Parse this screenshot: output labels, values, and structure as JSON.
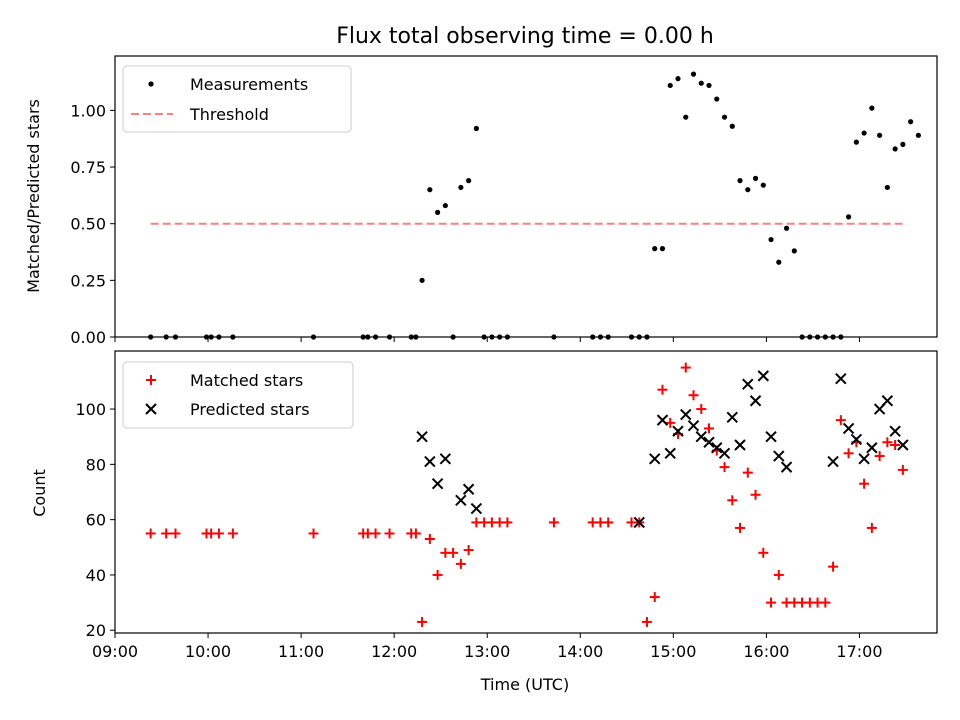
{
  "chart_data": [
    {
      "type": "scatter",
      "title": "Flux total observing time = 0.00 h",
      "xlabel": "",
      "ylabel": "Matched/Predicted stars",
      "xlim": [
        "09:00",
        "17:50"
      ],
      "ylim": [
        0,
        1.24
      ],
      "yticks": [
        "0.00",
        "0.25",
        "0.50",
        "0.75",
        "1.00"
      ],
      "legend": {
        "position": "top-left",
        "entries": [
          "Measurements",
          "Threshold"
        ]
      },
      "threshold": {
        "name": "Threshold",
        "y": 0.5,
        "x_range": [
          "09:23",
          "17:28"
        ],
        "color": "#ff7f7f",
        "style": "dashed"
      },
      "series": [
        {
          "name": "Measurements",
          "color": "#000000",
          "marker": "dot",
          "points": [
            [
              "09:23",
              0
            ],
            [
              "09:33",
              0
            ],
            [
              "09:39",
              0
            ],
            [
              "09:59",
              0
            ],
            [
              "10:02",
              0
            ],
            [
              "10:07",
              0
            ],
            [
              "10:16",
              0
            ],
            [
              "11:08",
              0
            ],
            [
              "11:40",
              0
            ],
            [
              "11:43",
              0
            ],
            [
              "11:48",
              0
            ],
            [
              "11:57",
              0
            ],
            [
              "12:11",
              0
            ],
            [
              "12:14",
              0
            ],
            [
              "12:18",
              0.25
            ],
            [
              "12:23",
              0.65
            ],
            [
              "12:28",
              0.55
            ],
            [
              "12:33",
              0.58
            ],
            [
              "12:38",
              0
            ],
            [
              "12:43",
              0.66
            ],
            [
              "12:48",
              0.69
            ],
            [
              "12:53",
              0.92
            ],
            [
              "12:58",
              0
            ],
            [
              "13:03",
              0
            ],
            [
              "13:08",
              0
            ],
            [
              "13:13",
              0
            ],
            [
              "13:43",
              0
            ],
            [
              "14:08",
              0
            ],
            [
              "14:13",
              0
            ],
            [
              "14:18",
              0
            ],
            [
              "14:33",
              0
            ],
            [
              "14:38",
              0
            ],
            [
              "14:43",
              0
            ],
            [
              "14:48",
              0.39
            ],
            [
              "14:53",
              0.39
            ],
            [
              "14:58",
              1.11
            ],
            [
              "15:03",
              1.14
            ],
            [
              "15:08",
              0.97
            ],
            [
              "15:13",
              1.16
            ],
            [
              "15:18",
              1.12
            ],
            [
              "15:23",
              1.11
            ],
            [
              "15:28",
              1.05
            ],
            [
              "15:33",
              0.97
            ],
            [
              "15:38",
              0.93
            ],
            [
              "15:43",
              0.69
            ],
            [
              "15:48",
              0.65
            ],
            [
              "15:53",
              0.7
            ],
            [
              "15:58",
              0.67
            ],
            [
              "16:03",
              0.43
            ],
            [
              "16:08",
              0.33
            ],
            [
              "16:13",
              0.48
            ],
            [
              "16:18",
              0.38
            ],
            [
              "16:23",
              0
            ],
            [
              "16:28",
              0
            ],
            [
              "16:33",
              0
            ],
            [
              "16:38",
              0
            ],
            [
              "16:43",
              0
            ],
            [
              "16:48",
              0
            ],
            [
              "16:53",
              0.53
            ],
            [
              "16:58",
              0.86
            ],
            [
              "17:03",
              0.9
            ],
            [
              "17:08",
              1.01
            ],
            [
              "17:13",
              0.89
            ],
            [
              "17:18",
              0.66
            ],
            [
              "17:23",
              0.83
            ],
            [
              "17:28",
              0.85
            ],
            [
              "17:33",
              0.95
            ],
            [
              "17:38",
              0.89
            ]
          ]
        }
      ]
    },
    {
      "type": "scatter",
      "title": "",
      "xlabel": "Time (UTC)",
      "ylabel": "Count",
      "xlim": [
        "09:00",
        "17:50"
      ],
      "ylim": [
        19,
        121
      ],
      "xticks": [
        "09:00",
        "10:00",
        "11:00",
        "12:00",
        "13:00",
        "14:00",
        "15:00",
        "16:00",
        "17:00"
      ],
      "yticks": [
        "20",
        "40",
        "60",
        "80",
        "100"
      ],
      "legend": {
        "position": "top-left",
        "entries": [
          "Matched stars",
          "Predicted stars"
        ]
      },
      "series": [
        {
          "name": "Matched stars",
          "color": "#ff0000",
          "marker": "plus",
          "points": [
            [
              "09:23",
              55
            ],
            [
              "09:33",
              55
            ],
            [
              "09:39",
              55
            ],
            [
              "09:59",
              55
            ],
            [
              "10:02",
              55
            ],
            [
              "10:07",
              55
            ],
            [
              "10:16",
              55
            ],
            [
              "11:08",
              55
            ],
            [
              "11:40",
              55
            ],
            [
              "11:43",
              55
            ],
            [
              "11:48",
              55
            ],
            [
              "11:57",
              55
            ],
            [
              "12:11",
              55
            ],
            [
              "12:14",
              55
            ],
            [
              "12:18",
              23
            ],
            [
              "12:23",
              53
            ],
            [
              "12:28",
              40
            ],
            [
              "12:33",
              48
            ],
            [
              "12:38",
              48
            ],
            [
              "12:43",
              44
            ],
            [
              "12:48",
              49
            ],
            [
              "12:53",
              59
            ],
            [
              "12:58",
              59
            ],
            [
              "13:03",
              59
            ],
            [
              "13:08",
              59
            ],
            [
              "13:13",
              59
            ],
            [
              "13:43",
              59
            ],
            [
              "14:08",
              59
            ],
            [
              "14:13",
              59
            ],
            [
              "14:18",
              59
            ],
            [
              "14:33",
              59
            ],
            [
              "14:38",
              59
            ],
            [
              "14:43",
              23
            ],
            [
              "14:48",
              32
            ],
            [
              "14:53",
              107
            ],
            [
              "14:58",
              95
            ],
            [
              "15:03",
              91
            ],
            [
              "15:08",
              115
            ],
            [
              "15:13",
              105
            ],
            [
              "15:18",
              100
            ],
            [
              "15:23",
              93
            ],
            [
              "15:28",
              85
            ],
            [
              "15:33",
              79
            ],
            [
              "15:38",
              67
            ],
            [
              "15:43",
              57
            ],
            [
              "15:48",
              77
            ],
            [
              "15:53",
              69
            ],
            [
              "15:58",
              48
            ],
            [
              "16:03",
              30
            ],
            [
              "16:08",
              40
            ],
            [
              "16:13",
              30
            ],
            [
              "16:18",
              30
            ],
            [
              "16:23",
              30
            ],
            [
              "16:28",
              30
            ],
            [
              "16:33",
              30
            ],
            [
              "16:38",
              30
            ],
            [
              "16:43",
              43
            ],
            [
              "16:48",
              96
            ],
            [
              "16:53",
              84
            ],
            [
              "16:58",
              88
            ],
            [
              "17:03",
              73
            ],
            [
              "17:08",
              57
            ],
            [
              "17:13",
              83
            ],
            [
              "17:18",
              88
            ],
            [
              "17:23",
              87
            ],
            [
              "17:28",
              78
            ]
          ]
        },
        {
          "name": "Predicted stars",
          "color": "#000000",
          "marker": "cross",
          "points": [
            [
              "12:18",
              90
            ],
            [
              "12:23",
              81
            ],
            [
              "12:28",
              73
            ],
            [
              "12:33",
              82
            ],
            [
              "12:43",
              67
            ],
            [
              "12:48",
              71
            ],
            [
              "12:53",
              64
            ],
            [
              "14:38",
              59
            ],
            [
              "14:48",
              82
            ],
            [
              "14:53",
              96
            ],
            [
              "14:58",
              84
            ],
            [
              "15:03",
              92
            ],
            [
              "15:08",
              98
            ],
            [
              "15:13",
              94
            ],
            [
              "15:18",
              90
            ],
            [
              "15:23",
              88
            ],
            [
              "15:28",
              86
            ],
            [
              "15:33",
              84
            ],
            [
              "15:38",
              97
            ],
            [
              "15:43",
              87
            ],
            [
              "15:48",
              109
            ],
            [
              "15:53",
              103
            ],
            [
              "15:58",
              112
            ],
            [
              "16:03",
              90
            ],
            [
              "16:08",
              83
            ],
            [
              "16:13",
              79
            ],
            [
              "16:43",
              81
            ],
            [
              "16:48",
              111
            ],
            [
              "16:53",
              93
            ],
            [
              "16:58",
              89
            ],
            [
              "17:03",
              82
            ],
            [
              "17:08",
              86
            ],
            [
              "17:13",
              100
            ],
            [
              "17:18",
              103
            ],
            [
              "17:23",
              92
            ],
            [
              "17:28",
              87
            ]
          ]
        }
      ]
    }
  ]
}
